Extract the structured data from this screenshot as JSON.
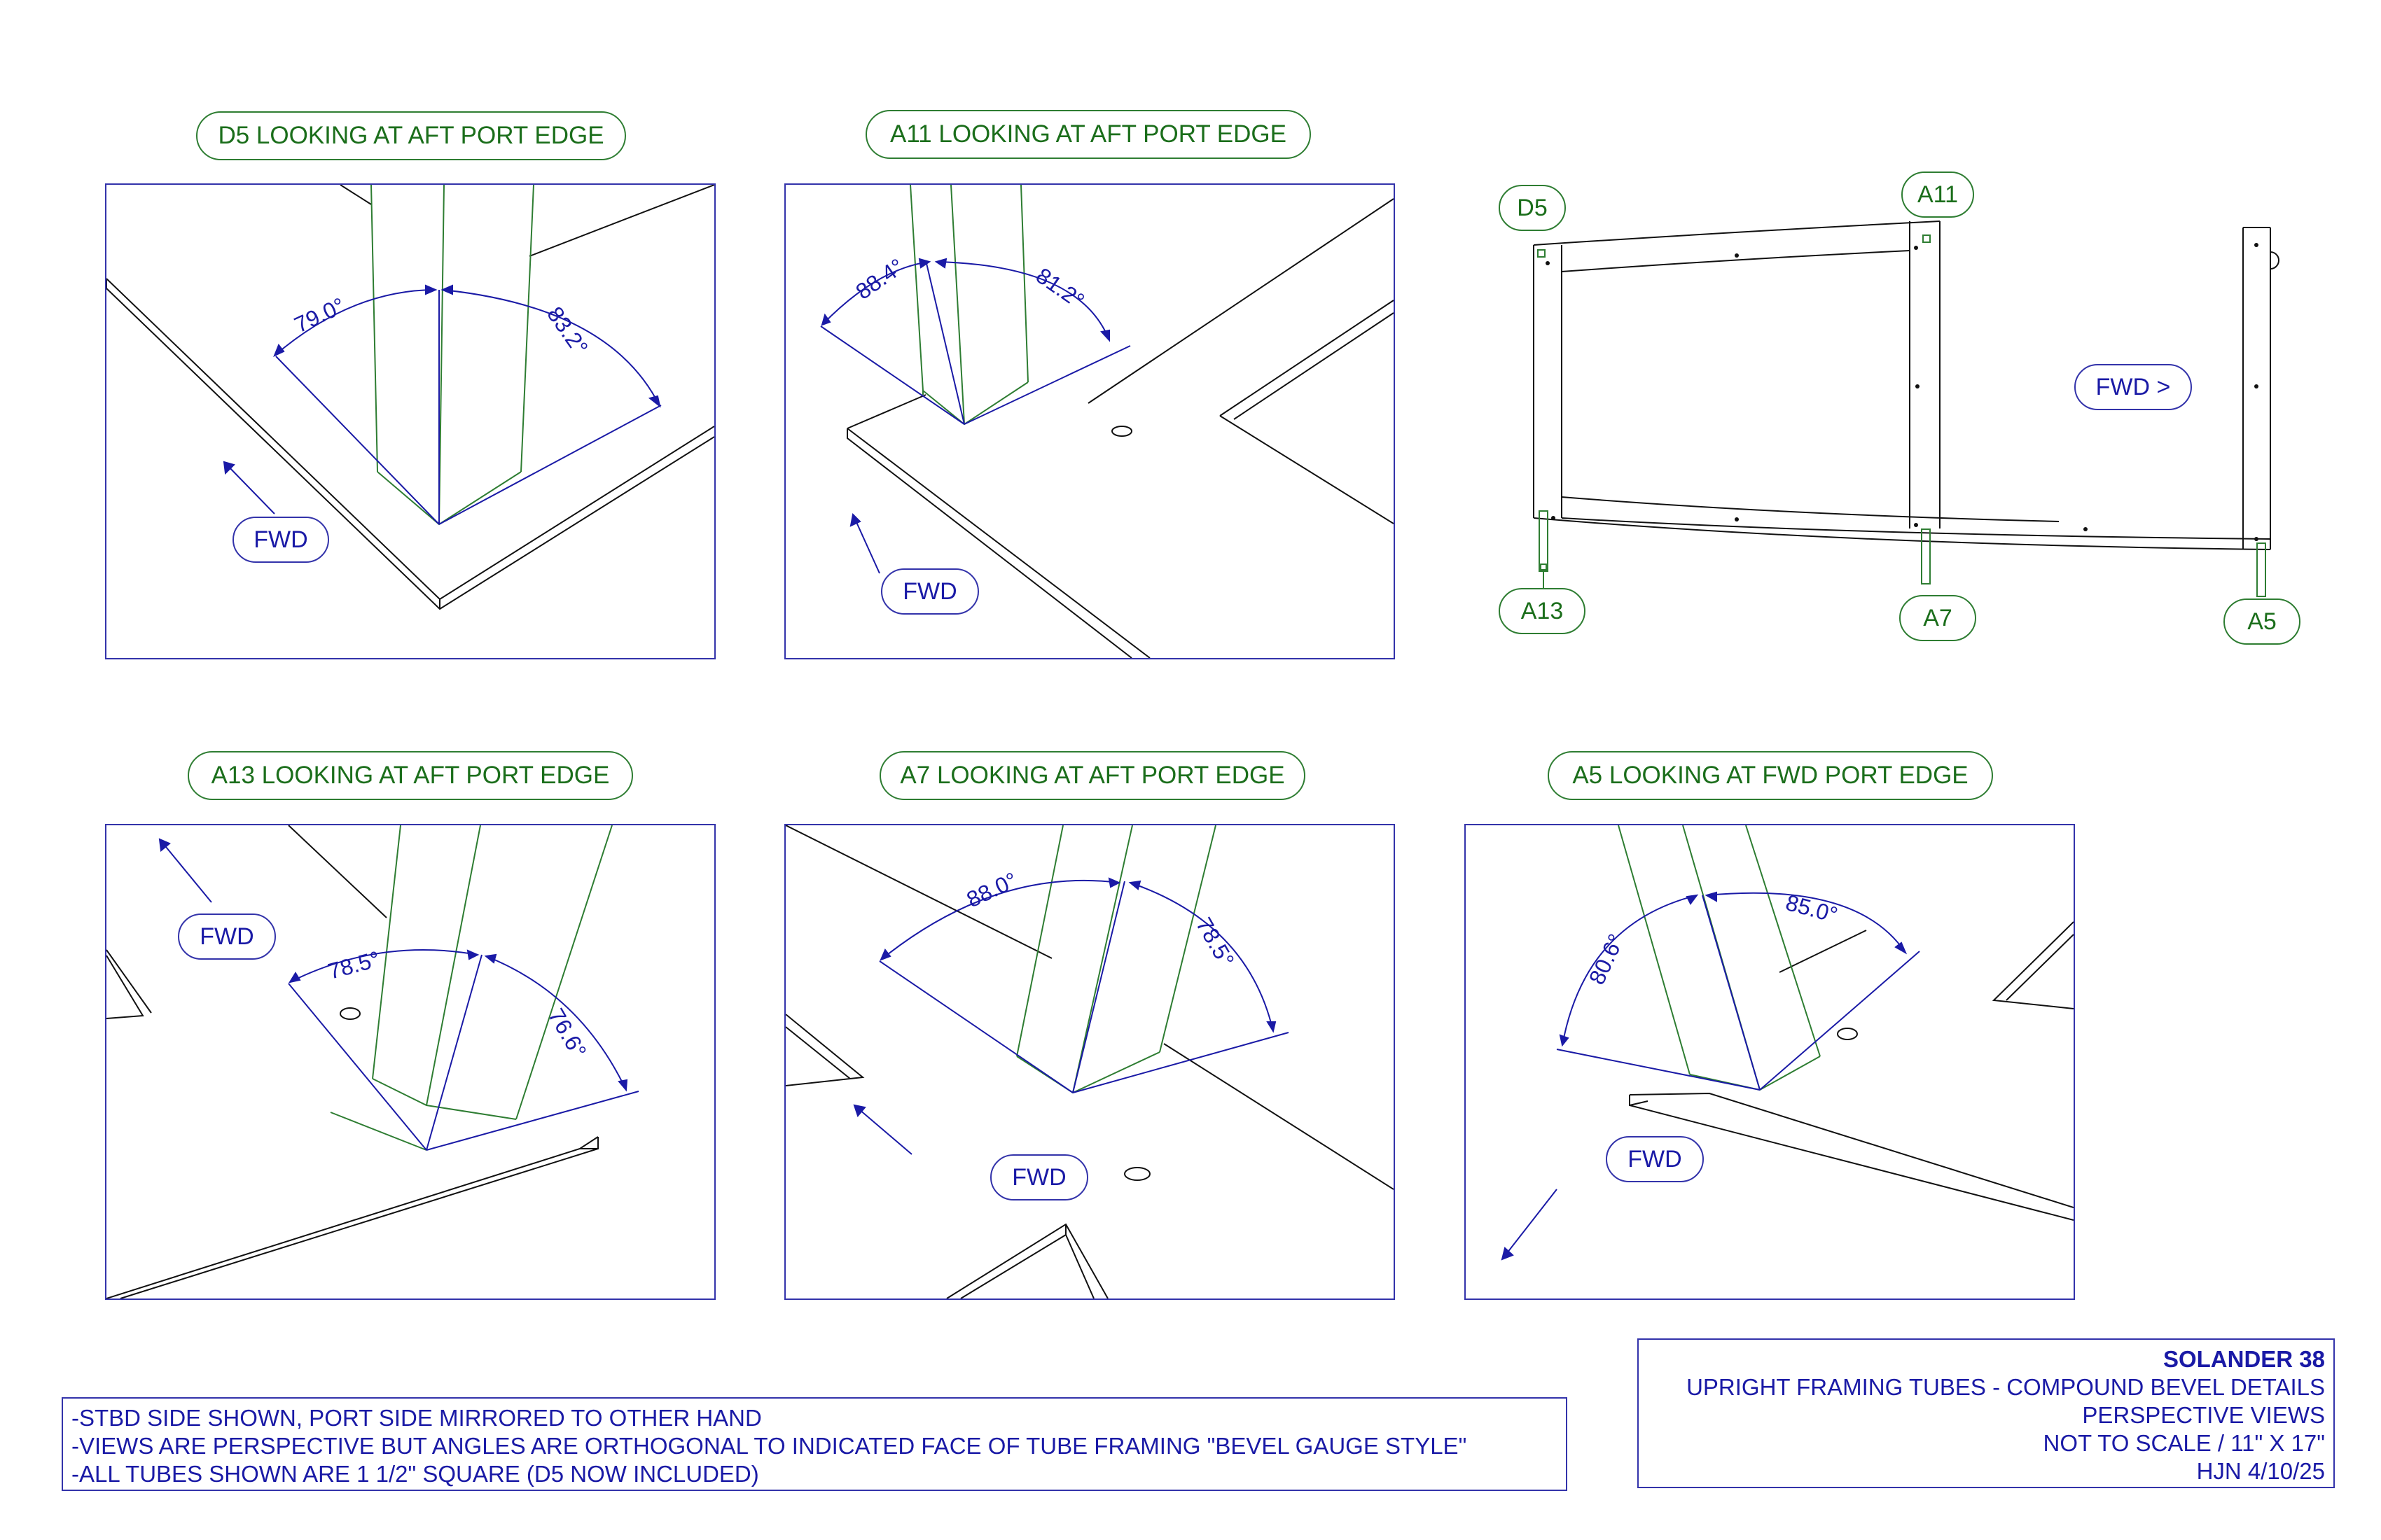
{
  "views": [
    {
      "title": "D5 LOOKING AT AFT PORT EDGE",
      "angles": [
        "79.0°",
        "83.2°"
      ],
      "fwd": "FWD"
    },
    {
      "title": "A11 LOOKING AT AFT PORT EDGE",
      "angles": [
        "88.4°",
        "81.2°"
      ],
      "fwd": "FWD"
    },
    {
      "title": "A13 LOOKING AT AFT PORT EDGE",
      "angles": [
        "78.5°",
        "76.6°"
      ],
      "fwd": "FWD"
    },
    {
      "title": "A7 LOOKING AT AFT PORT EDGE",
      "angles": [
        "88.0°",
        "78.5°"
      ],
      "fwd": "FWD"
    },
    {
      "title": "A5 LOOKING AT FWD PORT EDGE",
      "angles": [
        "80.6°",
        "85.0°"
      ],
      "fwd": "FWD"
    }
  ],
  "plan": {
    "tags": [
      "D5",
      "A11",
      "A13",
      "A7",
      "A5"
    ],
    "fwd": "FWD >"
  },
  "notes": [
    "-STBD SIDE SHOWN, PORT SIDE MIRRORED TO OTHER HAND",
    "-VIEWS ARE PERSPECTIVE BUT ANGLES ARE ORTHOGONAL TO INDICATED FACE OF TUBE FRAMING \"BEVEL GAUGE STYLE\"",
    "-ALL TUBES SHOWN ARE 1 1/2\" SQUARE (D5 NOW INCLUDED)"
  ],
  "title_block": {
    "project": "SOLANDER 38",
    "line1": "UPRIGHT FRAMING TUBES - COMPOUND BEVEL DETAILS",
    "line2": "PERSPECTIVE VIEWS",
    "line3": "NOT TO SCALE / 11\" X 17\"",
    "line4": "HJN 4/10/25"
  },
  "colors": {
    "blue": "#1a1aa6",
    "green": "#2e7d32",
    "black": "#111111"
  }
}
